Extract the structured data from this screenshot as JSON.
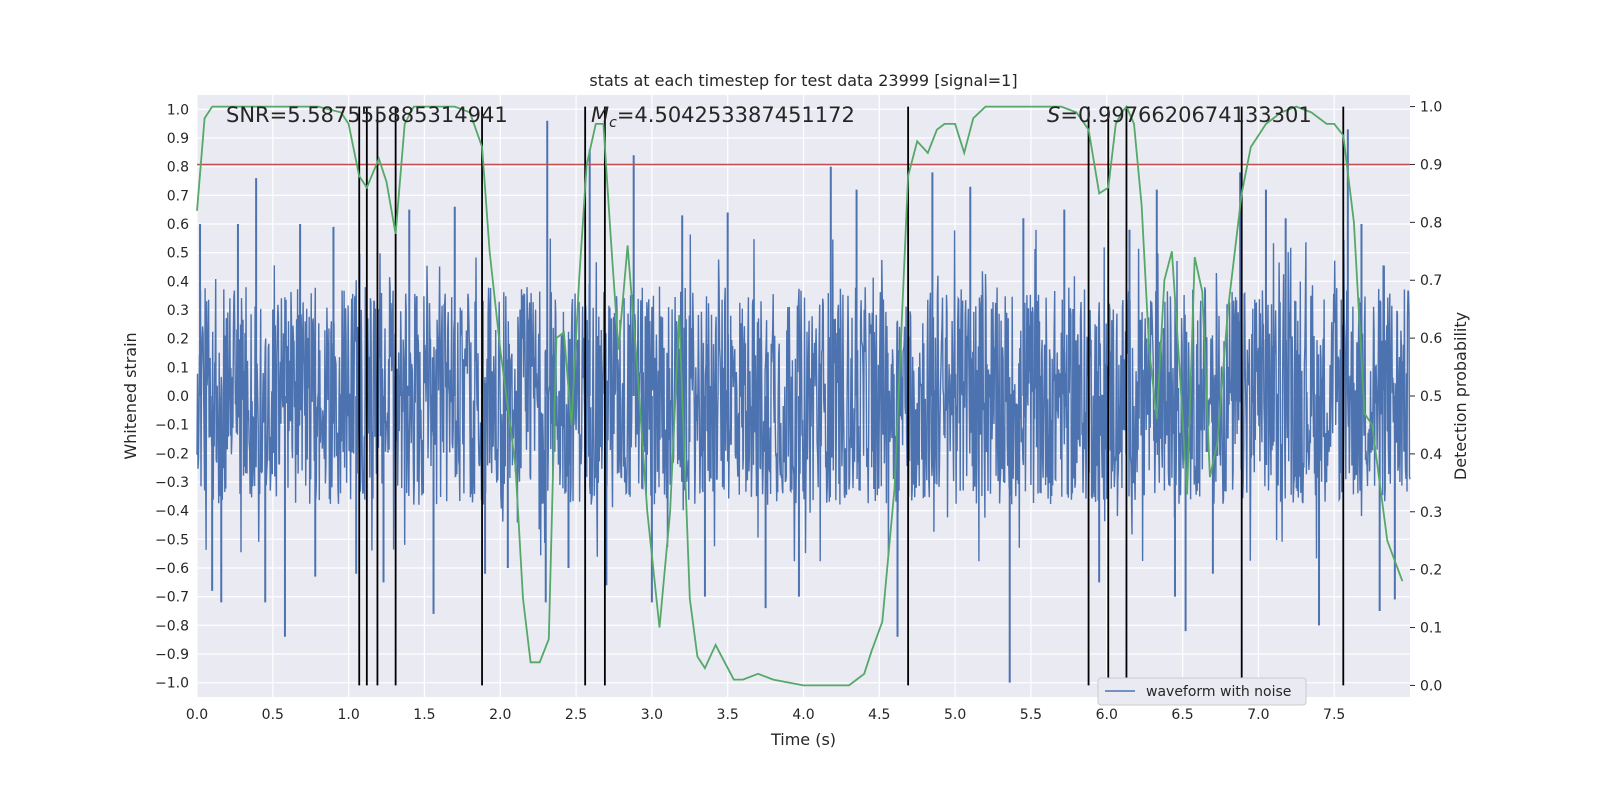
{
  "chart_data": {
    "type": "line",
    "title": "stats at each timestep for test data 23999 [signal=1]",
    "xlabel": "Time (s)",
    "ylabel_left": "Whitened strain",
    "ylabel_right": "Detection probability",
    "xlim": [
      0,
      8
    ],
    "ylim_left": [
      -1.05,
      1.05
    ],
    "ylim_right": [
      -0.02,
      1.02
    ],
    "x_ticks": [
      "0.0",
      "0.5",
      "1.0",
      "1.5",
      "2.0",
      "2.5",
      "3.0",
      "3.5",
      "4.0",
      "4.5",
      "5.0",
      "5.5",
      "6.0",
      "6.5",
      "7.0",
      "7.5"
    ],
    "y_ticks_left": [
      "1.0",
      "0.9",
      "0.8",
      "0.7",
      "0.6",
      "0.5",
      "0.4",
      "0.3",
      "0.2",
      "0.1",
      "0.0",
      "-0.1",
      "-0.2",
      "-0.3",
      "-0.4",
      "-0.5",
      "-0.6",
      "-0.7",
      "-0.8",
      "-0.9",
      "-1.0"
    ],
    "y_ticks_right": [
      "1.0",
      "0.9",
      "0.8",
      "0.7",
      "0.6",
      "0.5",
      "0.4",
      "0.3",
      "0.2",
      "0.1",
      "0.0"
    ],
    "annotations": {
      "snr": "SNR=5.587555885314941",
      "mc_symbol": "M",
      "mc_sub": "c",
      "mc_value": "=4.504253387451172",
      "s_symbol": "S",
      "s_value": "=0.9976620674133301"
    },
    "threshold": {
      "value": 0.9,
      "axis": "right",
      "color": "#c44e52"
    },
    "vlines": [
      1.07,
      1.12,
      1.19,
      1.31,
      1.88,
      2.56,
      2.69,
      4.69,
      5.88,
      6.01,
      6.13,
      6.89,
      7.56
    ],
    "waveform": {
      "name": "waveform with noise",
      "color": "#4c72b0",
      "band": 0.38,
      "spikes": [
        {
          "x": 0.02,
          "y": 0.6
        },
        {
          "x": 0.1,
          "y": -0.68
        },
        {
          "x": 0.16,
          "y": -0.72
        },
        {
          "x": 0.27,
          "y": 0.6
        },
        {
          "x": 0.39,
          "y": 0.76
        },
        {
          "x": 0.45,
          "y": -0.72
        },
        {
          "x": 0.58,
          "y": -0.84
        },
        {
          "x": 0.68,
          "y": 0.6
        },
        {
          "x": 0.78,
          "y": -0.63
        },
        {
          "x": 0.9,
          "y": 0.59
        },
        {
          "x": 1.05,
          "y": -0.62
        },
        {
          "x": 1.23,
          "y": -0.65
        },
        {
          "x": 1.4,
          "y": 0.65
        },
        {
          "x": 1.56,
          "y": -0.76
        },
        {
          "x": 1.7,
          "y": 0.66
        },
        {
          "x": 1.9,
          "y": -0.62
        },
        {
          "x": 2.05,
          "y": -0.6
        },
        {
          "x": 2.3,
          "y": -0.72
        },
        {
          "x": 2.31,
          "y": 0.96
        },
        {
          "x": 2.45,
          "y": -0.6
        },
        {
          "x": 2.59,
          "y": 0.86
        },
        {
          "x": 2.7,
          "y": -0.66
        },
        {
          "x": 2.88,
          "y": 0.84
        },
        {
          "x": 3.0,
          "y": -0.72
        },
        {
          "x": 3.2,
          "y": 0.63
        },
        {
          "x": 3.35,
          "y": -0.7
        },
        {
          "x": 3.5,
          "y": 0.64
        },
        {
          "x": 3.75,
          "y": -0.74
        },
        {
          "x": 3.97,
          "y": -0.7
        },
        {
          "x": 4.18,
          "y": 0.8
        },
        {
          "x": 4.35,
          "y": 0.72
        },
        {
          "x": 4.62,
          "y": -0.84
        },
        {
          "x": 4.85,
          "y": 0.78
        },
        {
          "x": 5.1,
          "y": 0.73
        },
        {
          "x": 5.36,
          "y": -1.0
        },
        {
          "x": 5.45,
          "y": 0.62
        },
        {
          "x": 5.72,
          "y": 0.65
        },
        {
          "x": 5.95,
          "y": -0.65
        },
        {
          "x": 6.15,
          "y": 0.58
        },
        {
          "x": 6.33,
          "y": 0.72
        },
        {
          "x": 6.45,
          "y": -0.7
        },
        {
          "x": 6.52,
          "y": -0.82
        },
        {
          "x": 6.7,
          "y": -0.62
        },
        {
          "x": 6.88,
          "y": 0.78
        },
        {
          "x": 7.05,
          "y": 0.72
        },
        {
          "x": 7.18,
          "y": 0.62
        },
        {
          "x": 7.4,
          "y": -0.8
        },
        {
          "x": 7.59,
          "y": 0.93
        },
        {
          "x": 7.68,
          "y": 0.6
        },
        {
          "x": 7.8,
          "y": -0.75
        },
        {
          "x": 7.9,
          "y": -0.71
        }
      ]
    },
    "probability": {
      "name": "Detection probability",
      "color": "#55a868",
      "x": [
        0.0,
        0.05,
        0.1,
        0.2,
        0.4,
        0.6,
        0.8,
        0.95,
        1.0,
        1.07,
        1.12,
        1.2,
        1.25,
        1.31,
        1.37,
        1.43,
        1.55,
        1.7,
        1.8,
        1.88,
        1.93,
        2.0,
        2.1,
        2.15,
        2.2,
        2.26,
        2.32,
        2.37,
        2.42,
        2.47,
        2.52,
        2.57,
        2.63,
        2.68,
        2.73,
        2.78,
        2.84,
        2.9,
        2.97,
        3.05,
        3.12,
        3.18,
        3.25,
        3.3,
        3.35,
        3.42,
        3.48,
        3.54,
        3.6,
        3.7,
        3.8,
        4.0,
        4.1,
        4.22,
        4.3,
        4.35,
        4.4,
        4.45,
        4.52,
        4.6,
        4.69,
        4.75,
        4.82,
        4.88,
        4.93,
        5.0,
        5.06,
        5.12,
        5.2,
        5.3,
        5.5,
        5.7,
        5.8,
        5.88,
        5.95,
        6.01,
        6.06,
        6.1,
        6.13,
        6.18,
        6.23,
        6.28,
        6.33,
        6.38,
        6.43,
        6.48,
        6.53,
        6.58,
        6.63,
        6.68,
        6.73,
        6.8,
        6.89,
        6.95,
        7.05,
        7.15,
        7.25,
        7.35,
        7.45,
        7.5,
        7.56,
        7.63,
        7.7,
        7.75,
        7.85,
        7.95
      ],
      "y": [
        0.82,
        0.98,
        1.0,
        1.0,
        1.0,
        1.0,
        1.0,
        0.99,
        0.97,
        0.88,
        0.86,
        0.91,
        0.87,
        0.78,
        0.97,
        1.0,
        1.0,
        1.0,
        0.99,
        0.93,
        0.75,
        0.58,
        0.38,
        0.15,
        0.04,
        0.04,
        0.08,
        0.6,
        0.61,
        0.45,
        0.7,
        0.9,
        0.97,
        0.97,
        0.77,
        0.58,
        0.76,
        0.56,
        0.3,
        0.1,
        0.3,
        0.64,
        0.15,
        0.05,
        0.03,
        0.07,
        0.04,
        0.01,
        0.01,
        0.02,
        0.01,
        0.0,
        0.0,
        0.0,
        0.0,
        0.01,
        0.02,
        0.06,
        0.11,
        0.34,
        0.88,
        0.94,
        0.92,
        0.96,
        0.97,
        0.97,
        0.92,
        0.98,
        1.0,
        1.0,
        1.0,
        1.0,
        0.99,
        0.96,
        0.85,
        0.86,
        0.97,
        0.99,
        1.0,
        0.97,
        0.83,
        0.58,
        0.46,
        0.7,
        0.75,
        0.55,
        0.33,
        0.74,
        0.68,
        0.36,
        0.42,
        0.65,
        0.85,
        0.93,
        0.97,
        0.99,
        1.0,
        0.99,
        0.97,
        0.97,
        0.95,
        0.8,
        0.47,
        0.45,
        0.25,
        0.18
      ]
    },
    "legend": {
      "label": "waveform with noise",
      "placement": "lower-right"
    }
  }
}
